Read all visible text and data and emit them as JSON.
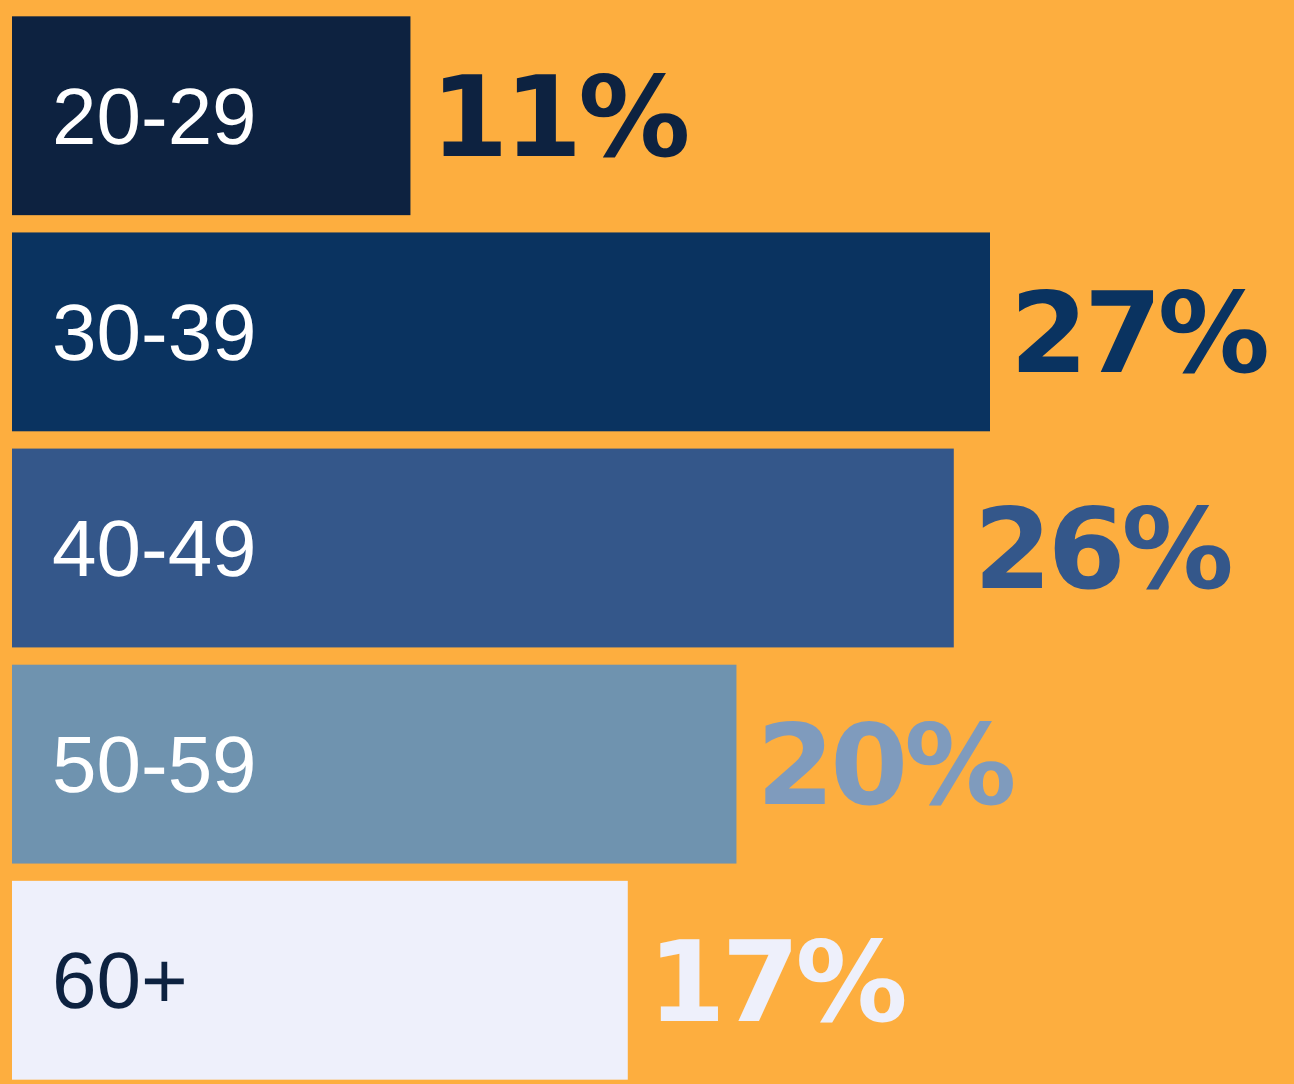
{
  "chart_data": {
    "type": "bar",
    "orientation": "horizontal",
    "categories": [
      "20-29",
      "30-39",
      "40-49",
      "50-59",
      "60+"
    ],
    "values": [
      11,
      27,
      26,
      20,
      17
    ],
    "colors": [
      "#0d2240",
      "#0a3360",
      "#34578a",
      "#6f93af",
      "#eef0fb"
    ],
    "value_labels": [
      "11%",
      "27%",
      "26%",
      "20%",
      "17%"
    ]
  }
}
